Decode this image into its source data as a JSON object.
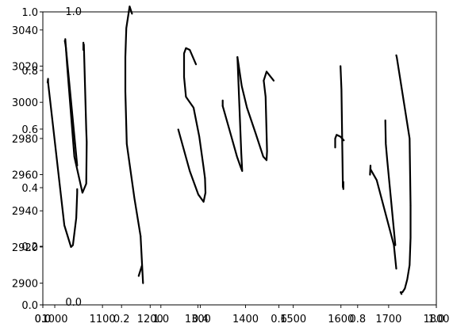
{
  "chart_data": {
    "type": "line",
    "title": "",
    "xlabel": "",
    "ylabel": "",
    "grid": false,
    "axes": [
      {
        "name": "overlay-axes-unit",
        "xlim": [
          0,
          1
        ],
        "ylim": [
          0,
          1
        ],
        "xticks": [
          0.0,
          0.2,
          0.4,
          0.6,
          0.8,
          1.0
        ],
        "xtick_labels": [
          "0.0",
          "0.2",
          "0.4",
          "0.6",
          "0.8",
          "1.0"
        ],
        "yticks": [
          0.0,
          0.2,
          0.4,
          0.6,
          0.8,
          1.0
        ],
        "ytick_labels": [
          "0.0",
          "0.2",
          "0.4",
          "0.6",
          "0.8",
          "1.0"
        ]
      },
      {
        "name": "overlay-axes-inner",
        "xlim": [
          0,
          1
        ],
        "ylim": [
          0,
          1
        ],
        "x_extent": [
          0.0,
          0.3
        ],
        "y_extent": [
          0.0,
          1.0
        ],
        "xticks": [
          0.0,
          1.0
        ],
        "xtick_labels": [
          "0.0",
          "1.0"
        ],
        "yticks": [
          0.0,
          1.0
        ],
        "ytick_labels": [
          "0.0",
          "1.0"
        ]
      },
      {
        "name": "main-axes",
        "xlim": [
          975,
          1800
        ],
        "ylim": [
          2888,
          3050
        ],
        "xticks": [
          1000,
          1100,
          1200,
          1300,
          1400,
          1500,
          1600,
          1700,
          1800
        ],
        "xtick_labels": [
          "1000",
          "1100",
          "1200",
          "1300",
          "1400",
          "1500",
          "1600",
          "1700",
          "1800"
        ],
        "yticks": [
          2900,
          2920,
          2940,
          2960,
          2980,
          3000,
          3020,
          3040
        ],
        "ytick_labels": [
          "2900",
          "2920",
          "2940",
          "2960",
          "2980",
          "3000",
          "3020",
          "3040"
        ]
      }
    ],
    "series": [
      {
        "x": [
          985,
          986,
          986
        ],
        "y": [
          3011,
          3013,
          3011
        ]
      },
      {
        "x": [
          986,
          1020,
          1034,
          1038,
          1045,
          1047,
          1047
        ],
        "y": [
          3011,
          2932,
          2920,
          2921,
          2936,
          2950,
          2952
        ]
      },
      {
        "x": [
          1022,
          1026,
          1041,
          1058,
          1066,
          1067,
          1066,
          1061
        ],
        "y": [
          3035,
          3020,
          2970,
          2950,
          2955,
          2978,
          2985,
          3032
        ]
      },
      {
        "x": [
          1060,
          1060
        ],
        "y": [
          3033,
          3029
        ]
      },
      {
        "x": [
          1021,
          1023,
          1047
        ],
        "y": [
          3034,
          3031,
          2965
        ]
      },
      {
        "x": [
          1176,
          1183,
          1185,
          1180
        ],
        "y": [
          2904,
          2910,
          2900,
          2926
        ]
      },
      {
        "x": [
          1180,
          1167,
          1151,
          1148,
          1148,
          1150,
          1157,
          1162
        ],
        "y": [
          2926,
          2947,
          2977,
          3006,
          3025,
          3041,
          3053,
          3049
        ]
      },
      {
        "x": [
          1259,
          1283,
          1301,
          1312,
          1316,
          1315
        ],
        "y": [
          2985,
          2962,
          2949,
          2945,
          2950,
          2958
        ]
      },
      {
        "x": [
          1315,
          1312,
          1303,
          1291,
          1275,
          1271,
          1271,
          1275,
          1283,
          1296
        ],
        "y": [
          2958,
          2964,
          2981,
          2997,
          3003,
          3014,
          3027,
          3030,
          3029,
          3021
        ]
      },
      {
        "x": [
          1352,
          1352
        ],
        "y": [
          2998,
          3001
        ]
      },
      {
        "x": [
          1352,
          1366,
          1382,
          1390,
          1393,
          1391,
          1383
        ],
        "y": [
          2998,
          2985,
          2970,
          2964,
          2962,
          2972,
          3025
        ]
      },
      {
        "x": [
          1383,
          1392,
          1403,
          1421,
          1437,
          1444,
          1445,
          1442,
          1438
        ],
        "y": [
          3025,
          3009,
          2997,
          2983,
          2970,
          2968,
          2973,
          3003,
          3012
        ]
      },
      {
        "x": [
          1438,
          1444,
          1459
        ],
        "y": [
          3012,
          3017,
          3012
        ]
      },
      {
        "x": [
          1588,
          1588,
          1591,
          1599,
          1606
        ],
        "y": [
          2975,
          2980,
          2982,
          2981,
          2979
        ]
      },
      {
        "x": [
          1599,
          1601,
          1604,
          1604
        ],
        "y": [
          3020,
          3007,
          2953,
          2954
        ]
      },
      {
        "x": [
          1604,
          1605,
          1605
        ],
        "y": [
          2954,
          2956,
          2952
        ]
      },
      {
        "x": [
          1661,
          1662,
          1662,
          1675,
          1711,
          1716
        ],
        "y": [
          2960,
          2965,
          2963,
          2957,
          2921,
          2908
        ]
      },
      {
        "x": [
          1693,
          1694,
          1697,
          1705,
          1714
        ],
        "y": [
          2990,
          2977,
          2968,
          2946,
          2921
        ]
      },
      {
        "x": [
          1716,
          1717,
          1744,
          1746
        ],
        "y": [
          3026,
          3025,
          2980,
          2943
        ]
      },
      {
        "x": [
          1746,
          1746,
          1744,
          1739,
          1734,
          1729,
          1726,
          1725,
          1727
        ],
        "y": [
          2943,
          2925,
          2910,
          2902,
          2897,
          2895,
          2895,
          2895,
          2894
        ]
      }
    ]
  }
}
